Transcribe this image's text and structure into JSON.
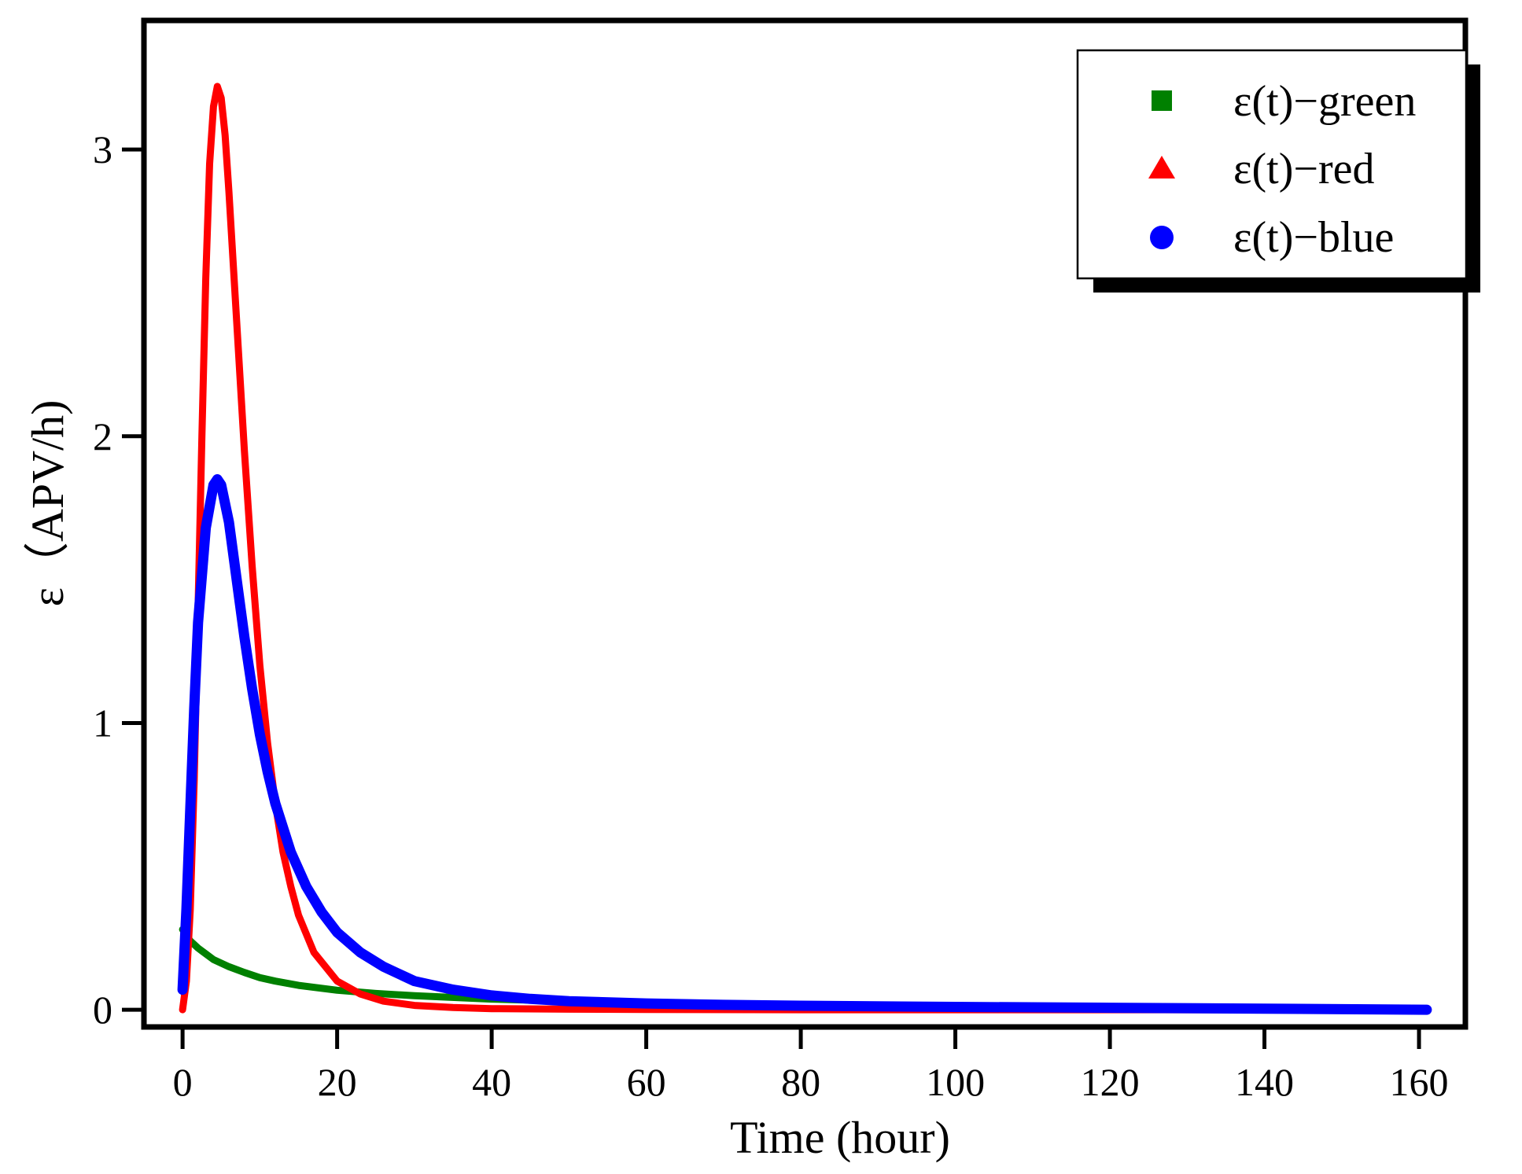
{
  "chart_data": {
    "type": "line",
    "title": "",
    "xlabel": "Time (hour)",
    "ylabel": "ε（APV/h)",
    "xlim": [
      -5,
      166
    ],
    "ylim": [
      -0.06,
      3.45
    ],
    "xticks": [
      0,
      20,
      40,
      60,
      80,
      100,
      120,
      140,
      160
    ],
    "xtick_labels": [
      "0",
      "20",
      "40",
      "60",
      "80",
      "100",
      "120",
      "140",
      "160"
    ],
    "yticks": [
      0,
      1,
      2,
      3
    ],
    "ytick_labels": [
      "0",
      "1",
      "2",
      "3"
    ],
    "grid": false,
    "legend_position": "top-right",
    "series": [
      {
        "name": "ε(t)−green",
        "color": "#008000",
        "marker": "square",
        "x": [
          0,
          1,
          2,
          3,
          4,
          6,
          8,
          10,
          12,
          15,
          20,
          25,
          30,
          40,
          50,
          60,
          80,
          100,
          120,
          140,
          161
        ],
        "y": [
          0.28,
          0.24,
          0.215,
          0.195,
          0.175,
          0.15,
          0.13,
          0.112,
          0.1,
          0.085,
          0.068,
          0.057,
          0.049,
          0.037,
          0.03,
          0.025,
          0.018,
          0.013,
          0.009,
          0.005,
          0.0
        ]
      },
      {
        "name": "ε(t)−red",
        "color": "#ff0000",
        "marker": "triangle",
        "x": [
          0,
          0.5,
          1,
          1.5,
          2,
          2.5,
          3,
          3.5,
          4,
          4.5,
          5,
          5.5,
          6,
          7,
          8,
          9,
          10,
          11,
          12,
          13,
          14,
          15,
          17,
          20,
          23,
          26,
          30,
          35,
          40,
          50,
          60,
          80,
          100,
          120,
          140,
          161
        ],
        "y": [
          0.0,
          0.1,
          0.35,
          0.8,
          1.4,
          2.0,
          2.55,
          2.95,
          3.15,
          3.22,
          3.18,
          3.05,
          2.85,
          2.4,
          1.95,
          1.55,
          1.2,
          0.93,
          0.72,
          0.55,
          0.43,
          0.33,
          0.2,
          0.1,
          0.055,
          0.03,
          0.015,
          0.008,
          0.004,
          0.002,
          0.001,
          0.0,
          0.0,
          0.0,
          0.0,
          0.0
        ]
      },
      {
        "name": "ε(t)−blue",
        "color": "#0000ff",
        "marker": "circle",
        "x": [
          0,
          0.5,
          1,
          1.5,
          2,
          3,
          4,
          4.5,
          5,
          6,
          7,
          8,
          9,
          10,
          11,
          12,
          14,
          16,
          18,
          20,
          23,
          26,
          30,
          35,
          40,
          45,
          50,
          60,
          70,
          80,
          100,
          120,
          140,
          161
        ],
        "y": [
          0.07,
          0.35,
          0.7,
          1.05,
          1.35,
          1.68,
          1.83,
          1.85,
          1.83,
          1.7,
          1.5,
          1.3,
          1.12,
          0.96,
          0.83,
          0.72,
          0.55,
          0.43,
          0.34,
          0.27,
          0.2,
          0.15,
          0.1,
          0.07,
          0.05,
          0.038,
          0.03,
          0.022,
          0.017,
          0.014,
          0.01,
          0.007,
          0.004,
          0.0
        ]
      }
    ]
  }
}
